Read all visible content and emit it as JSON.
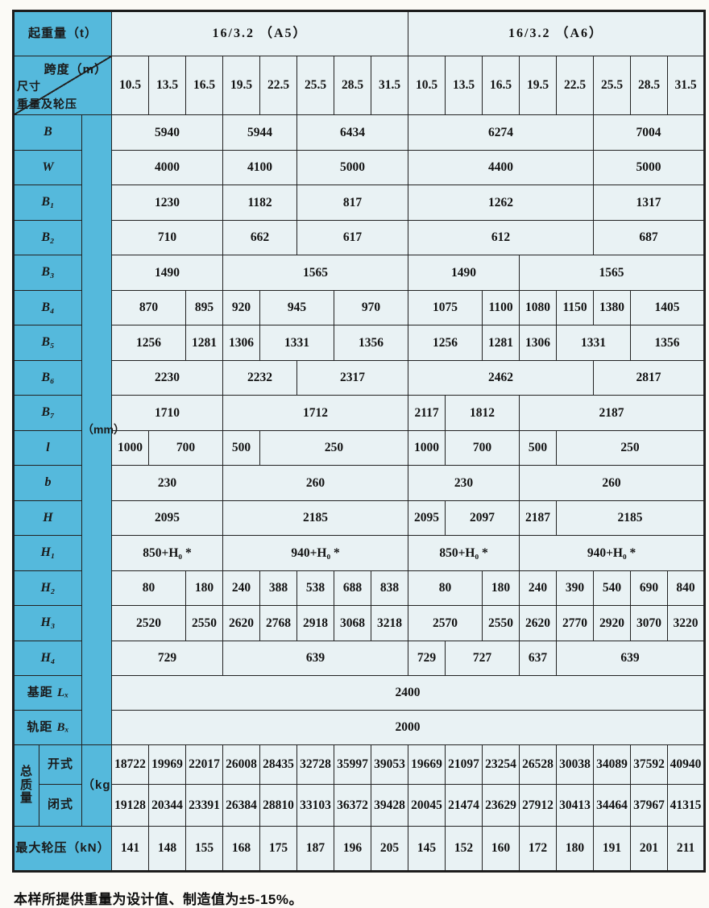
{
  "colors": {
    "header_blue": "#55b9dc",
    "cell_bg": "#e9f2f4",
    "border": "#222222"
  },
  "footer_note": "本样所提供重量为设计值、制造值为±5-15%。",
  "table": {
    "rows": [
      {
        "name": "row-capacity",
        "cells": [
          {
            "t": "起重量（t）",
            "s": 3,
            "k": "h"
          },
          {
            "t": "16/3.2 （A5）",
            "s": 8,
            "k": "g"
          },
          {
            "t": "16/3.2 （A6）",
            "s": 8,
            "k": "g"
          }
        ]
      },
      {
        "name": "row-span-header",
        "cells": [
          {
            "k": "diag",
            "s": 3,
            "tr": "跨度（m）",
            "bl1": "尺寸",
            "bl2": "重量及轮压"
          },
          {
            "t": "10.5"
          },
          {
            "t": "13.5"
          },
          {
            "t": "16.5"
          },
          {
            "t": "19.5"
          },
          {
            "t": "22.5"
          },
          {
            "t": "25.5"
          },
          {
            "t": "28.5"
          },
          {
            "t": "31.5"
          },
          {
            "t": "10.5"
          },
          {
            "t": "13.5"
          },
          {
            "t": "16.5"
          },
          {
            "t": "19.5"
          },
          {
            "t": "22.5"
          },
          {
            "t": "25.5"
          },
          {
            "t": "28.5"
          },
          {
            "t": "31.5"
          }
        ]
      },
      {
        "name": "row-B",
        "cells": [
          {
            "t": "B",
            "s": 2,
            "k": "hi"
          },
          {
            "t": "（mm）",
            "r": 18,
            "k": "strip"
          },
          {
            "t": "5940",
            "s": 3
          },
          {
            "t": "5944",
            "s": 2
          },
          {
            "t": "6434",
            "s": 3
          },
          {
            "t": "6274",
            "s": 5
          },
          {
            "t": "7004",
            "s": 3
          }
        ]
      },
      {
        "name": "row-W",
        "cells": [
          {
            "t": "W",
            "s": 2,
            "k": "hi"
          },
          {
            "t": "4000",
            "s": 3
          },
          {
            "t": "4100",
            "s": 2
          },
          {
            "t": "5000",
            "s": 3
          },
          {
            "t": "4400",
            "s": 5
          },
          {
            "t": "5000",
            "s": 3
          }
        ]
      },
      {
        "name": "row-B1",
        "cells": [
          {
            "t": "B₁",
            "s": 2,
            "k": "hi"
          },
          {
            "t": "1230",
            "s": 3
          },
          {
            "t": "1182",
            "s": 2
          },
          {
            "t": "817",
            "s": 3
          },
          {
            "t": "1262",
            "s": 5
          },
          {
            "t": "1317",
            "s": 3
          }
        ]
      },
      {
        "name": "row-B2",
        "cells": [
          {
            "t": "B₂",
            "s": 2,
            "k": "hi"
          },
          {
            "t": "710",
            "s": 3
          },
          {
            "t": "662",
            "s": 2
          },
          {
            "t": "617",
            "s": 3
          },
          {
            "t": "612",
            "s": 5
          },
          {
            "t": "687",
            "s": 3
          }
        ]
      },
      {
        "name": "row-B3",
        "cells": [
          {
            "t": "B₃",
            "s": 2,
            "k": "hi"
          },
          {
            "t": "1490",
            "s": 3
          },
          {
            "t": "1565",
            "s": 5
          },
          {
            "t": "1490",
            "s": 3
          },
          {
            "t": "1565",
            "s": 5
          }
        ]
      },
      {
        "name": "row-B4",
        "cells": [
          {
            "t": "B₄",
            "s": 2,
            "k": "hi"
          },
          {
            "t": "870",
            "s": 2
          },
          {
            "t": "895"
          },
          {
            "t": "920"
          },
          {
            "t": "945",
            "s": 2
          },
          {
            "t": "970",
            "s": 2
          },
          {
            "t": "1075",
            "s": 2
          },
          {
            "t": "1100"
          },
          {
            "t": "1080"
          },
          {
            "t": "1150"
          },
          {
            "t": "1380"
          },
          {
            "t": "1405",
            "s": 2
          }
        ]
      },
      {
        "name": "row-B5",
        "cells": [
          {
            "t": "B₅",
            "s": 2,
            "k": "hi"
          },
          {
            "t": "1256",
            "s": 2
          },
          {
            "t": "1281"
          },
          {
            "t": "1306"
          },
          {
            "t": "1331",
            "s": 2
          },
          {
            "t": "1356",
            "s": 2
          },
          {
            "t": "1256",
            "s": 2
          },
          {
            "t": "1281"
          },
          {
            "t": "1306"
          },
          {
            "t": "1331",
            "s": 2
          },
          {
            "t": "1356",
            "s": 2
          }
        ]
      },
      {
        "name": "row-B6",
        "cells": [
          {
            "t": "B₆",
            "s": 2,
            "k": "hi"
          },
          {
            "t": "2230",
            "s": 3
          },
          {
            "t": "2232",
            "s": 2
          },
          {
            "t": "2317",
            "s": 3
          },
          {
            "t": "2462",
            "s": 5
          },
          {
            "t": "2817",
            "s": 3
          }
        ]
      },
      {
        "name": "row-B7",
        "cells": [
          {
            "t": "B₇",
            "s": 2,
            "k": "hi"
          },
          {
            "t": "1710",
            "s": 3
          },
          {
            "t": "1712",
            "s": 5
          },
          {
            "t": "2117"
          },
          {
            "t": "1812",
            "s": 2
          },
          {
            "t": "2187",
            "s": 5
          }
        ]
      },
      {
        "name": "row-l",
        "cells": [
          {
            "t": "l",
            "s": 2,
            "k": "hi"
          },
          {
            "t": "1000"
          },
          {
            "t": "700",
            "s": 2
          },
          {
            "t": "500"
          },
          {
            "t": "250",
            "s": 4
          },
          {
            "t": "1000"
          },
          {
            "t": "700",
            "s": 2
          },
          {
            "t": "500"
          },
          {
            "t": "250",
            "s": 4
          }
        ]
      },
      {
        "name": "row-b",
        "cells": [
          {
            "t": "b",
            "s": 2,
            "k": "hi"
          },
          {
            "t": "230",
            "s": 3
          },
          {
            "t": "260",
            "s": 5
          },
          {
            "t": "230",
            "s": 3
          },
          {
            "t": "260",
            "s": 5
          }
        ]
      },
      {
        "name": "row-H",
        "cells": [
          {
            "t": "H",
            "s": 2,
            "k": "hi"
          },
          {
            "t": "2095",
            "s": 3
          },
          {
            "t": "2185",
            "s": 5
          },
          {
            "t": "2095"
          },
          {
            "t": "2097",
            "s": 2
          },
          {
            "t": "2187"
          },
          {
            "t": "2185",
            "s": 4
          }
        ]
      },
      {
        "name": "row-H1",
        "cells": [
          {
            "t": "H₁",
            "s": 2,
            "k": "hi"
          },
          {
            "t": "850+H₀ *",
            "s": 3
          },
          {
            "t": "940+H₀ *",
            "s": 5
          },
          {
            "t": "850+H₀ *",
            "s": 3
          },
          {
            "t": "940+H₀ *",
            "s": 5
          }
        ]
      },
      {
        "name": "row-H2",
        "cells": [
          {
            "t": "H₂",
            "s": 2,
            "k": "hi"
          },
          {
            "t": "80",
            "s": 2
          },
          {
            "t": "180"
          },
          {
            "t": "240"
          },
          {
            "t": "388"
          },
          {
            "t": "538"
          },
          {
            "t": "688"
          },
          {
            "t": "838"
          },
          {
            "t": "80",
            "s": 2
          },
          {
            "t": "180"
          },
          {
            "t": "240"
          },
          {
            "t": "390"
          },
          {
            "t": "540"
          },
          {
            "t": "690"
          },
          {
            "t": "840"
          }
        ]
      },
      {
        "name": "row-H3",
        "cells": [
          {
            "t": "H₃",
            "s": 2,
            "k": "hi"
          },
          {
            "t": "2520",
            "s": 2
          },
          {
            "t": "2550"
          },
          {
            "t": "2620"
          },
          {
            "t": "2768"
          },
          {
            "t": "2918"
          },
          {
            "t": "3068"
          },
          {
            "t": "3218"
          },
          {
            "t": "2570",
            "s": 2
          },
          {
            "t": "2550"
          },
          {
            "t": "2620"
          },
          {
            "t": "2770"
          },
          {
            "t": "2920"
          },
          {
            "t": "3070"
          },
          {
            "t": "3220"
          }
        ]
      },
      {
        "name": "row-H4",
        "cells": [
          {
            "t": "H₄",
            "s": 2,
            "k": "hi"
          },
          {
            "t": "729",
            "s": 3
          },
          {
            "t": "639",
            "s": 5
          },
          {
            "t": "729"
          },
          {
            "t": "727",
            "s": 2
          },
          {
            "t": "637"
          },
          {
            "t": "639",
            "s": 4
          }
        ]
      },
      {
        "name": "row-wheelbase",
        "cells": [
          {
            "t": "基距 ",
            "it": "Lₓ",
            "s": 2,
            "k": "h"
          },
          {
            "t": "2400",
            "s": 16
          }
        ]
      },
      {
        "name": "row-gauge",
        "cells": [
          {
            "t": "轨距 ",
            "it": "Bₓ",
            "s": 2,
            "k": "h"
          },
          {
            "t": "2000",
            "s": 16
          }
        ]
      },
      {
        "name": "row-mass-open",
        "cells": [
          {
            "t": "总质量",
            "r": 2,
            "k": "h"
          },
          {
            "t": "开式",
            "k": "h"
          },
          {
            "t": "（kg）",
            "r": 2,
            "k": "h"
          },
          {
            "t": "18722"
          },
          {
            "t": "19969"
          },
          {
            "t": "22017"
          },
          {
            "t": "26008"
          },
          {
            "t": "28435"
          },
          {
            "t": "32728"
          },
          {
            "t": "35997"
          },
          {
            "t": "39053"
          },
          {
            "t": "19669"
          },
          {
            "t": "21097"
          },
          {
            "t": "23254"
          },
          {
            "t": "26528"
          },
          {
            "t": "30038"
          },
          {
            "t": "34089"
          },
          {
            "t": "37592"
          },
          {
            "t": "40940"
          }
        ]
      },
      {
        "name": "row-mass-closed",
        "cells": [
          {
            "t": "闭式",
            "k": "h"
          },
          {
            "t": "19128"
          },
          {
            "t": "20344"
          },
          {
            "t": "23391"
          },
          {
            "t": "26384"
          },
          {
            "t": "28810"
          },
          {
            "t": "33103"
          },
          {
            "t": "36372"
          },
          {
            "t": "39428"
          },
          {
            "t": "20045"
          },
          {
            "t": "21474"
          },
          {
            "t": "23629"
          },
          {
            "t": "27912"
          },
          {
            "t": "30413"
          },
          {
            "t": "34464"
          },
          {
            "t": "37967"
          },
          {
            "t": "41315"
          }
        ]
      },
      {
        "name": "row-max-wheel-load",
        "cells": [
          {
            "t": "最大轮压（kN）",
            "s": 3,
            "k": "h"
          },
          {
            "t": "141"
          },
          {
            "t": "148"
          },
          {
            "t": "155"
          },
          {
            "t": "168"
          },
          {
            "t": "175"
          },
          {
            "t": "187"
          },
          {
            "t": "196"
          },
          {
            "t": "205"
          },
          {
            "t": "145"
          },
          {
            "t": "152"
          },
          {
            "t": "160"
          },
          {
            "t": "172"
          },
          {
            "t": "180"
          },
          {
            "t": "191"
          },
          {
            "t": "201"
          },
          {
            "t": "211"
          }
        ]
      }
    ]
  }
}
